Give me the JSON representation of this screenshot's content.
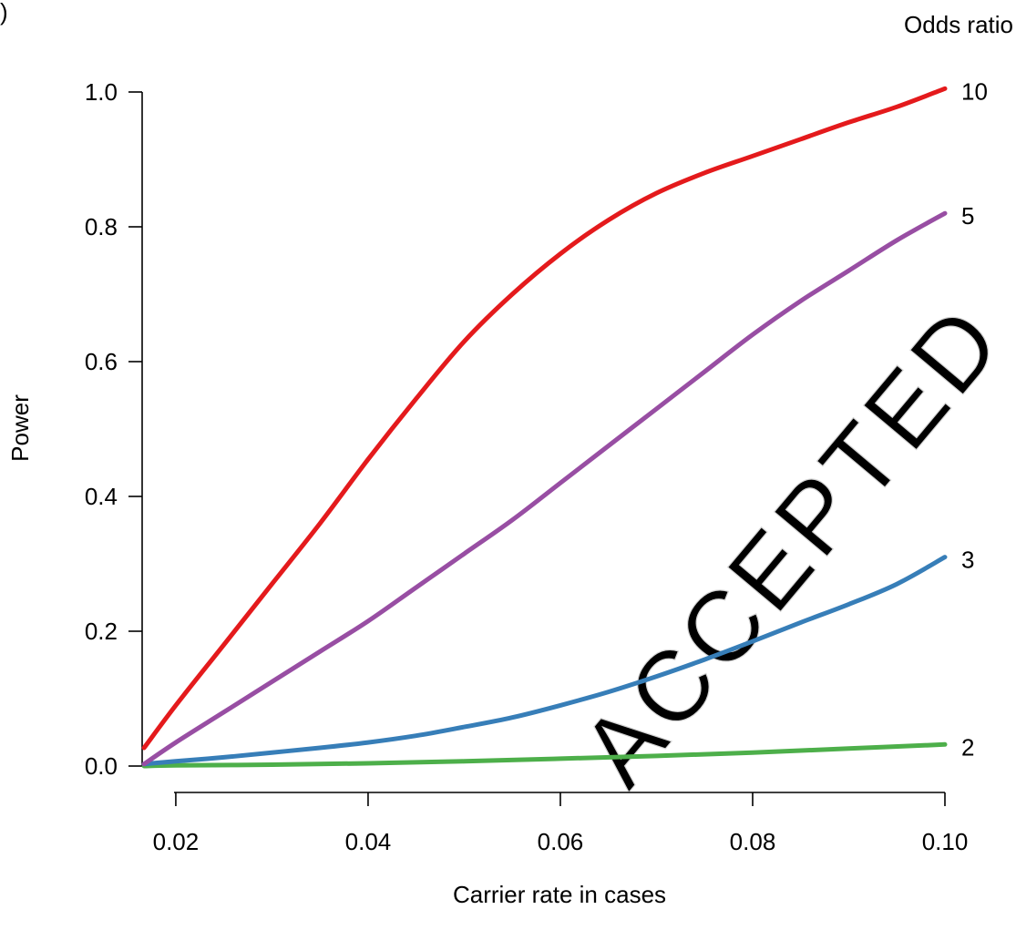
{
  "panel_label": ")",
  "watermark": "ACCEPTED",
  "chart_data": {
    "type": "line",
    "title": "",
    "xlabel": "Carrier rate in cases",
    "ylabel": "Power",
    "legend_title": "Odds ratio",
    "legend_placement": "right of plot, labels at line ends",
    "grid": false,
    "xlim": [
      0.0165,
      0.1
    ],
    "ylim": [
      0,
      1.0
    ],
    "xticks": [
      0.02,
      0.04,
      0.06,
      0.08,
      0.1
    ],
    "xtick_labels": [
      "0.02",
      "0.04",
      "0.06",
      "0.08",
      "0.10"
    ],
    "yticks": [
      0,
      0.2,
      0.4,
      0.6,
      0.8,
      1.0
    ],
    "ytick_labels": [
      "0.0",
      "0.2",
      "0.4",
      "0.6",
      "0.8",
      "1.0"
    ],
    "series": [
      {
        "name": "10",
        "color": "#e41a1c",
        "x": [
          0.0167,
          0.02,
          0.025,
          0.03,
          0.035,
          0.04,
          0.045,
          0.05,
          0.055,
          0.06,
          0.065,
          0.07,
          0.075,
          0.08,
          0.085,
          0.09,
          0.095,
          0.1
        ],
        "y": [
          0.027,
          0.09,
          0.18,
          0.27,
          0.36,
          0.455,
          0.545,
          0.63,
          0.7,
          0.76,
          0.81,
          0.85,
          0.88,
          0.905,
          0.93,
          0.955,
          0.978,
          1.005
        ]
      },
      {
        "name": "5",
        "color": "#984ea3",
        "x": [
          0.0167,
          0.02,
          0.025,
          0.03,
          0.035,
          0.04,
          0.045,
          0.05,
          0.055,
          0.06,
          0.065,
          0.07,
          0.075,
          0.08,
          0.085,
          0.09,
          0.095,
          0.1
        ],
        "y": [
          0.003,
          0.035,
          0.08,
          0.125,
          0.17,
          0.215,
          0.265,
          0.315,
          0.365,
          0.42,
          0.475,
          0.53,
          0.585,
          0.64,
          0.69,
          0.735,
          0.78,
          0.82
        ]
      },
      {
        "name": "3",
        "color": "#377eb8",
        "x": [
          0.0167,
          0.02,
          0.025,
          0.03,
          0.035,
          0.04,
          0.045,
          0.05,
          0.055,
          0.06,
          0.065,
          0.07,
          0.075,
          0.08,
          0.085,
          0.09,
          0.095,
          0.1
        ],
        "y": [
          0.003,
          0.007,
          0.013,
          0.02,
          0.027,
          0.035,
          0.045,
          0.058,
          0.072,
          0.09,
          0.11,
          0.133,
          0.158,
          0.185,
          0.213,
          0.24,
          0.27,
          0.31
        ]
      },
      {
        "name": "2",
        "color": "#4daf4a",
        "x": [
          0.0167,
          0.02,
          0.03,
          0.04,
          0.05,
          0.06,
          0.07,
          0.08,
          0.09,
          0.1
        ],
        "y": [
          0.0,
          0.001,
          0.002,
          0.004,
          0.007,
          0.011,
          0.015,
          0.02,
          0.026,
          0.032
        ]
      }
    ]
  }
}
